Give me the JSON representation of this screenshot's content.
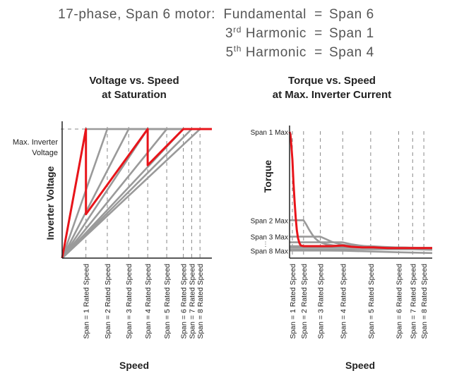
{
  "header": {
    "line1_prefix": "17-phase, Span 6 motor:",
    "lines": [
      {
        "name": "Fundamental",
        "sup": "",
        "eq": "=",
        "value": "Span 6"
      },
      {
        "name": "3",
        "sup": "rd",
        "rest": " Harmonic",
        "eq": "=",
        "value": "Span 1"
      },
      {
        "name": "5",
        "sup": "th",
        "rest": " Harmonic",
        "eq": "=",
        "value": "Span 4"
      }
    ]
  },
  "colors": {
    "highlight": "#e8141a",
    "series": "#9a9a9a",
    "axis": "#222222",
    "guide": "#888888",
    "text": "#222222"
  },
  "chart_data": [
    {
      "type": "line",
      "title": [
        "Voltage vs. Speed",
        "at Saturation"
      ],
      "xlabel": "Speed",
      "ylabel": "Inverter Voltage",
      "y_annotation": [
        "Max. Inverter",
        "Voltage"
      ],
      "x_tick_labels": [
        "Span = 1  Rated Speed",
        "Span = 2  Rated Speed",
        "Span = 3  Rated Speed",
        "Span = 4  Rated Speed",
        "Span = 5  Rated Speed",
        "Span = 6  Rated Speed",
        "Span = 7  Rated Speed",
        "Span = 8  Rated Speed"
      ],
      "x_tick_values": [
        1.0,
        1.9,
        2.8,
        3.6,
        4.4,
        5.1,
        5.45,
        5.8
      ],
      "xlim": [
        0,
        6.3
      ],
      "ylim": [
        0,
        1.06
      ],
      "max_voltage": 1.0,
      "series": [
        {
          "name": "Span 1",
          "x": [
            0,
            1.0,
            6.3
          ],
          "y": [
            0,
            1.0,
            1.0
          ]
        },
        {
          "name": "Span 2",
          "x": [
            0,
            1.9,
            6.3
          ],
          "y": [
            0,
            1.0,
            1.0
          ]
        },
        {
          "name": "Span 3",
          "x": [
            0,
            2.8,
            6.3
          ],
          "y": [
            0,
            1.0,
            1.0
          ]
        },
        {
          "name": "Span 4",
          "x": [
            0,
            3.6,
            6.3
          ],
          "y": [
            0,
            1.0,
            1.0
          ]
        },
        {
          "name": "Span 5",
          "x": [
            0,
            4.4,
            6.3
          ],
          "y": [
            0,
            1.0,
            1.0
          ]
        },
        {
          "name": "Span 6",
          "x": [
            0,
            5.1,
            6.3
          ],
          "y": [
            0,
            1.0,
            1.0
          ]
        },
        {
          "name": "Span 7",
          "x": [
            0,
            5.45,
            6.3
          ],
          "y": [
            0,
            1.0,
            1.0
          ]
        },
        {
          "name": "Span 8",
          "x": [
            0,
            5.8,
            6.3
          ],
          "y": [
            0,
            1.0,
            1.0
          ]
        }
      ],
      "highlight": {
        "name": "17-phase Span 6 motor",
        "x": [
          0,
          1.0,
          1.0,
          3.6,
          3.6,
          5.1,
          6.3
        ],
        "y": [
          0,
          1.0,
          0.34,
          1.0,
          0.72,
          1.0,
          1.0
        ]
      }
    },
    {
      "type": "line",
      "title": [
        "Torque vs. Speed",
        "at Max. Inverter Current"
      ],
      "xlabel": "Speed",
      "ylabel": "Torque",
      "y_tick_labels": [
        "Span 1 Max",
        "Span 2 Max",
        "Span 3 Max",
        "Span 8 Max"
      ],
      "y_tick_values": [
        1.0,
        0.3,
        0.17,
        0.06
      ],
      "x_tick_labels": [
        "Span = 1  Rated Speed",
        "Span = 2  Rated Speed",
        "Span = 3  Rated Speed",
        "Span = 4  Rated Speed",
        "Span = 5  Rated Speed",
        "Span = 6  Rated Speed",
        "Span = 7  Rated Speed",
        "Span = 8  Rated Speed"
      ],
      "x_tick_values": [
        0.1,
        0.5,
        1.1,
        1.9,
        2.9,
        3.9,
        4.4,
        4.8
      ],
      "xlim": [
        0,
        5.1
      ],
      "ylim": [
        0,
        1.05
      ],
      "series": [
        {
          "name": "Span 2",
          "x": [
            0,
            0.5,
            0.6,
            0.7,
            0.8,
            0.9,
            1.0,
            1.1,
            1.3,
            1.6,
            2.0,
            2.6,
            5.1
          ],
          "y": [
            0.3,
            0.3,
            0.265,
            0.225,
            0.19,
            0.16,
            0.14,
            0.125,
            0.11,
            0.1,
            0.09,
            0.085,
            0.08
          ]
        },
        {
          "name": "Span 3",
          "x": [
            0,
            1.1,
            1.3,
            1.5,
            1.8,
            2.1,
            2.5,
            3.0,
            5.1
          ],
          "y": [
            0.17,
            0.17,
            0.15,
            0.13,
            0.11,
            0.1,
            0.09,
            0.085,
            0.08
          ]
        },
        {
          "name": "Span 4",
          "x": [
            0,
            1.9,
            2.2,
            2.5,
            2.9,
            3.4,
            5.1
          ],
          "y": [
            0.125,
            0.125,
            0.11,
            0.1,
            0.09,
            0.085,
            0.08
          ]
        },
        {
          "name": "Span 5",
          "x": [
            0,
            2.9,
            3.3,
            3.8,
            5.1
          ],
          "y": [
            0.095,
            0.095,
            0.09,
            0.085,
            0.08
          ]
        },
        {
          "name": "Span 6",
          "x": [
            0,
            3.9,
            4.3,
            5.1
          ],
          "y": [
            0.085,
            0.085,
            0.082,
            0.08
          ]
        },
        {
          "name": "Span 7",
          "x": [
            0,
            4.4,
            5.1
          ],
          "y": [
            0.07,
            0.07,
            0.066
          ]
        },
        {
          "name": "Span 8",
          "x": [
            0,
            1.2,
            2.0,
            3.0,
            4.0,
            5.1
          ],
          "y": [
            0.06,
            0.06,
            0.058,
            0.052,
            0.046,
            0.04
          ]
        }
      ],
      "highlight": {
        "name": "17-phase Span 6 motor",
        "x": [
          0,
          0.03,
          0.06,
          0.1,
          0.14,
          0.18,
          0.22,
          0.26,
          0.3,
          0.35,
          0.4,
          0.5,
          0.6,
          0.8,
          1.1,
          1.5,
          1.9,
          2.2,
          2.6,
          3.0,
          3.5,
          4.0,
          5.1
        ],
        "y": [
          1.0,
          0.98,
          0.9,
          0.78,
          0.6,
          0.45,
          0.32,
          0.22,
          0.16,
          0.12,
          0.1,
          0.095,
          0.095,
          0.095,
          0.095,
          0.095,
          0.1,
          0.09,
          0.085,
          0.085,
          0.08,
          0.08,
          0.08
        ]
      }
    }
  ]
}
